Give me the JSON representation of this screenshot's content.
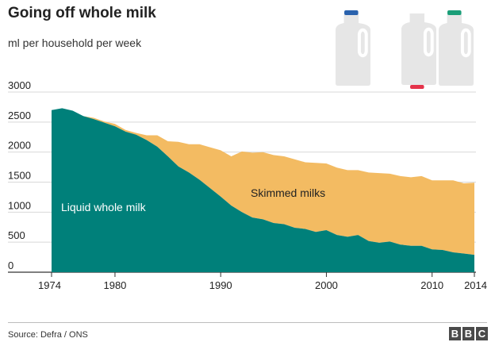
{
  "title": "Going off whole milk",
  "subtitle": "ml per household per week",
  "source": "Source: Defra / ONS",
  "logo": [
    "B",
    "B",
    "C"
  ],
  "icons": [
    "milk-bottle-icon",
    "milk-bottle-icon",
    "milk-bottle-icon"
  ],
  "colors": {
    "whole": "#00807a",
    "skimmed": "#f3bb62",
    "bottle": "#e6e6e6",
    "cap_blue": "#2a62ad",
    "cap_red": "#e4334a",
    "cap_green": "#1a9e78"
  },
  "chart_data": {
    "type": "area",
    "stacked": true,
    "xlim": [
      1974,
      2014
    ],
    "ylim": [
      0,
      3000
    ],
    "x_ticks": [
      1974,
      1980,
      1990,
      2000,
      2010,
      2014
    ],
    "y_ticks": [
      0,
      500,
      1000,
      1500,
      2000,
      2500,
      3000
    ],
    "grid": true,
    "x": [
      1974,
      1975,
      1976,
      1977,
      1978,
      1979,
      1980,
      1981,
      1982,
      1983,
      1984,
      1985,
      1986,
      1987,
      1988,
      1989,
      1990,
      1991,
      1992,
      1993,
      1994,
      1995,
      1996,
      1997,
      1998,
      1999,
      2000,
      2001,
      2002,
      2003,
      2004,
      2005,
      2006,
      2007,
      2008,
      2009,
      2010,
      2011,
      2012,
      2013,
      2014
    ],
    "series": [
      {
        "name": "Liquid whole milk",
        "values": [
          2700,
          2730,
          2690,
          2600,
          2550,
          2490,
          2430,
          2340,
          2290,
          2200,
          2090,
          1930,
          1760,
          1660,
          1540,
          1400,
          1260,
          1110,
          1000,
          910,
          880,
          820,
          800,
          740,
          720,
          670,
          700,
          620,
          590,
          620,
          520,
          490,
          510,
          460,
          440,
          440,
          380,
          370,
          330,
          310,
          290
        ]
      },
      {
        "name": "Skimmed milks",
        "values": [
          0,
          0,
          0,
          0,
          20,
          20,
          40,
          30,
          30,
          80,
          190,
          250,
          410,
          470,
          590,
          680,
          770,
          820,
          1010,
          1080,
          1120,
          1130,
          1130,
          1140,
          1110,
          1150,
          1110,
          1120,
          1110,
          1080,
          1140,
          1160,
          1130,
          1140,
          1140,
          1160,
          1150,
          1160,
          1200,
          1170,
          1200
        ]
      }
    ]
  }
}
